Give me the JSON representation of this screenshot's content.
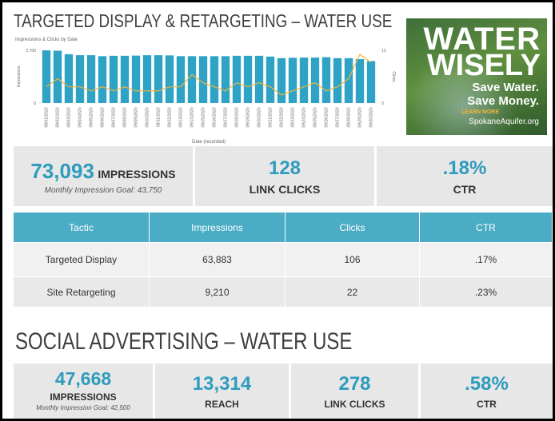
{
  "header": {
    "title": "TARGETED DISPLAY & RETARGETING – WATER USE"
  },
  "chart_data": {
    "type": "bar",
    "title": "Impressions & Clicks by Date",
    "x_label": "Date (recorded)",
    "categories": [
      "09/01/2020",
      "09/02/2020",
      "09/03/2020",
      "09/04/2020",
      "09/05/2020",
      "09/06/2020",
      "09/07/2020",
      "09/08/2020",
      "09/09/2020",
      "09/10/2020",
      "09/11/2020",
      "09/12/2020",
      "09/13/2020",
      "09/14/2020",
      "09/15/2020",
      "09/16/2020",
      "09/17/2020",
      "09/18/2020",
      "09/19/2020",
      "09/20/2020",
      "09/21/2020",
      "09/22/2020",
      "09/23/2020",
      "09/24/2020",
      "09/25/2020",
      "09/26/2020",
      "09/27/2020",
      "09/28/2020",
      "09/29/2020",
      "09/30/2020"
    ],
    "series": [
      {
        "name": "Impressions",
        "color": "#2ea3c5",
        "values": [
          2700,
          2680,
          2500,
          2450,
          2450,
          2400,
          2420,
          2420,
          2430,
          2450,
          2450,
          2440,
          2400,
          2400,
          2400,
          2400,
          2400,
          2420,
          2420,
          2420,
          2380,
          2300,
          2320,
          2330,
          2330,
          2350,
          2300,
          2300,
          2250,
          2150
        ]
      },
      {
        "name": "Clicks",
        "color": "#f2b33d",
        "type": "line",
        "axis": "y2",
        "values": [
          4,
          6,
          4,
          4,
          3,
          4,
          3,
          4,
          3,
          3,
          3,
          4,
          4,
          7,
          5,
          4,
          3,
          5,
          4,
          5,
          4,
          2,
          3,
          4,
          5,
          3,
          4,
          6,
          12,
          10
        ]
      }
    ],
    "ylim": [
      0,
      2700
    ],
    "yticks": [
      0,
      {
        "value": 2700,
        "label": "2,700"
      }
    ],
    "y2lim": [
      0,
      13
    ],
    "y2ticks": [
      0,
      13
    ]
  },
  "ad": {
    "line1": "WATER",
    "line2": "WISELY",
    "line3": "Save Water.",
    "line4": "Save Money.",
    "cta": "LEARN MORE",
    "url": "SpokaneAquifer.org"
  },
  "display_kpis": {
    "impressions": {
      "value": "73,093",
      "label": "IMPRESSIONS",
      "goal": "Monthly Impression Goal: 43,750"
    },
    "clicks": {
      "value": "128",
      "label": "LINK CLICKS"
    },
    "ctr": {
      "value": ".18%",
      "label": "CTR"
    }
  },
  "table": {
    "columns": [
      "Tactic",
      "Impressions",
      "Clicks",
      "CTR"
    ],
    "rows": [
      [
        "Targeted Display",
        "63,883",
        "106",
        ".17%"
      ],
      [
        "Site Retargeting",
        "9,210",
        "22",
        ".23%"
      ]
    ]
  },
  "social": {
    "title": "SOCIAL ADVERTISING – WATER USE",
    "impressions": {
      "value": "47,668",
      "label": "IMPRESSIONS",
      "goal": "Monthly Impression Goal: 42,500"
    },
    "reach": {
      "value": "13,314",
      "label": "REACH"
    },
    "clicks": {
      "value": "278",
      "label": "LINK CLICKS"
    },
    "ctr": {
      "value": ".58%",
      "label": "CTR"
    }
  }
}
